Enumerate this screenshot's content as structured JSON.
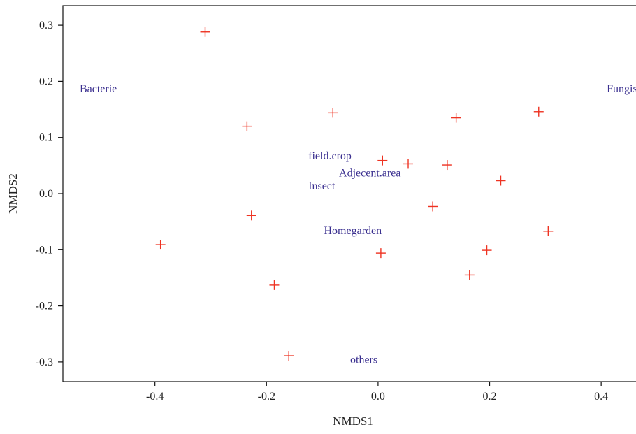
{
  "chart_data": {
    "type": "scatter",
    "title": "",
    "xlabel": "NMDS1",
    "ylabel": "NMDS2",
    "xlim": [
      -0.565,
      0.475
    ],
    "ylim": [
      -0.335,
      0.335
    ],
    "x_ticks": [
      -0.4,
      -0.2,
      0.0,
      0.2,
      0.4
    ],
    "x_tick_labels": [
      "-0.4",
      "-0.2",
      "0.0",
      "0.2",
      "0.4"
    ],
    "y_ticks": [
      0.3,
      0.2,
      0.1,
      0.0,
      -0.1,
      -0.2,
      -0.3
    ],
    "y_tick_labels": [
      "0.3",
      "0.2",
      "0.1",
      "0.0",
      "-0.1",
      "-0.2",
      "-0.3"
    ],
    "grid": false,
    "legend": "none",
    "marker": "plus",
    "point_color": "#ee3322",
    "label_color": "#3a2f8f",
    "series": [
      {
        "points": [
          {
            "x": -0.31,
            "y": 0.288
          },
          {
            "x": -0.081,
            "y": 0.144
          },
          {
            "x": 0.14,
            "y": 0.135
          },
          {
            "x": 0.288,
            "y": 0.146
          },
          {
            "x": -0.235,
            "y": 0.12
          },
          {
            "x": 0.008,
            "y": 0.059
          },
          {
            "x": 0.054,
            "y": 0.053
          },
          {
            "x": 0.124,
            "y": 0.051
          },
          {
            "x": 0.22,
            "y": 0.023
          },
          {
            "x": 0.098,
            "y": -0.023
          },
          {
            "x": -0.227,
            "y": -0.039
          },
          {
            "x": 0.305,
            "y": -0.067
          },
          {
            "x": -0.39,
            "y": -0.091
          },
          {
            "x": 0.005,
            "y": -0.106
          },
          {
            "x": 0.195,
            "y": -0.101
          },
          {
            "x": 0.164,
            "y": -0.145
          },
          {
            "x": -0.186,
            "y": -0.163
          },
          {
            "x": -0.16,
            "y": -0.289
          }
        ]
      }
    ],
    "annotations": [
      {
        "text": "Bacterie",
        "x": -0.535,
        "y": 0.187,
        "anchor": "start"
      },
      {
        "text": "Fungis",
        "x": 0.41,
        "y": 0.187,
        "anchor": "start"
      },
      {
        "text": "field.crop",
        "x": -0.125,
        "y": 0.067,
        "anchor": "start"
      },
      {
        "text": "Adjecent.area",
        "x": -0.07,
        "y": 0.037,
        "anchor": "start"
      },
      {
        "text": "Insect",
        "x": -0.125,
        "y": 0.014,
        "anchor": "start"
      },
      {
        "text": "Homegarden",
        "x": -0.097,
        "y": -0.066,
        "anchor": "start"
      },
      {
        "text": "others",
        "x": -0.05,
        "y": -0.296,
        "anchor": "start"
      }
    ]
  }
}
